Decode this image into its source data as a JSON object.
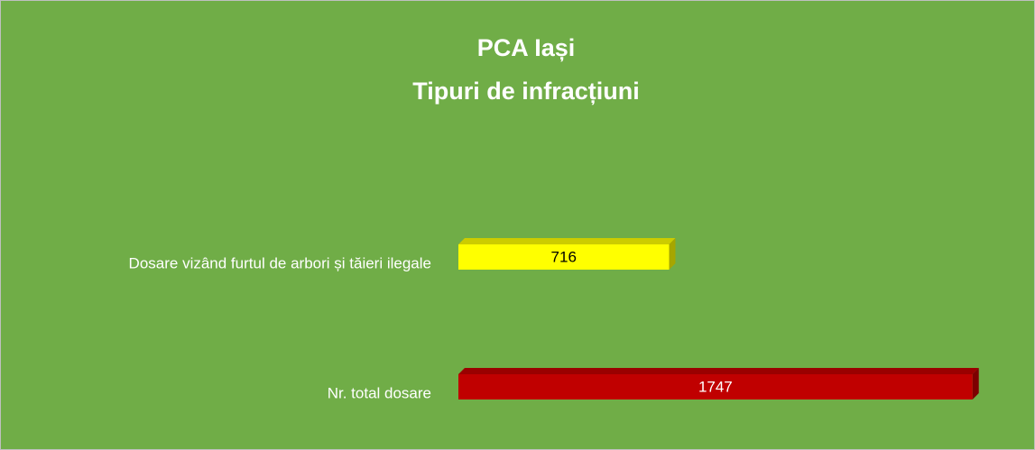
{
  "chart_data": {
    "type": "bar3d_horizontal",
    "title": "PCA  Iași",
    "subtitle": "Tipuri de infracțiuni",
    "categories": [
      "Dosare vizând furtul de arbori și tăieri ilegale",
      "Nr. total dosare"
    ],
    "values": [
      716,
      1747
    ],
    "colors": [
      "#ffff00",
      "#c00000"
    ],
    "background": "#70ad47",
    "xlim": [
      0,
      1800
    ]
  }
}
